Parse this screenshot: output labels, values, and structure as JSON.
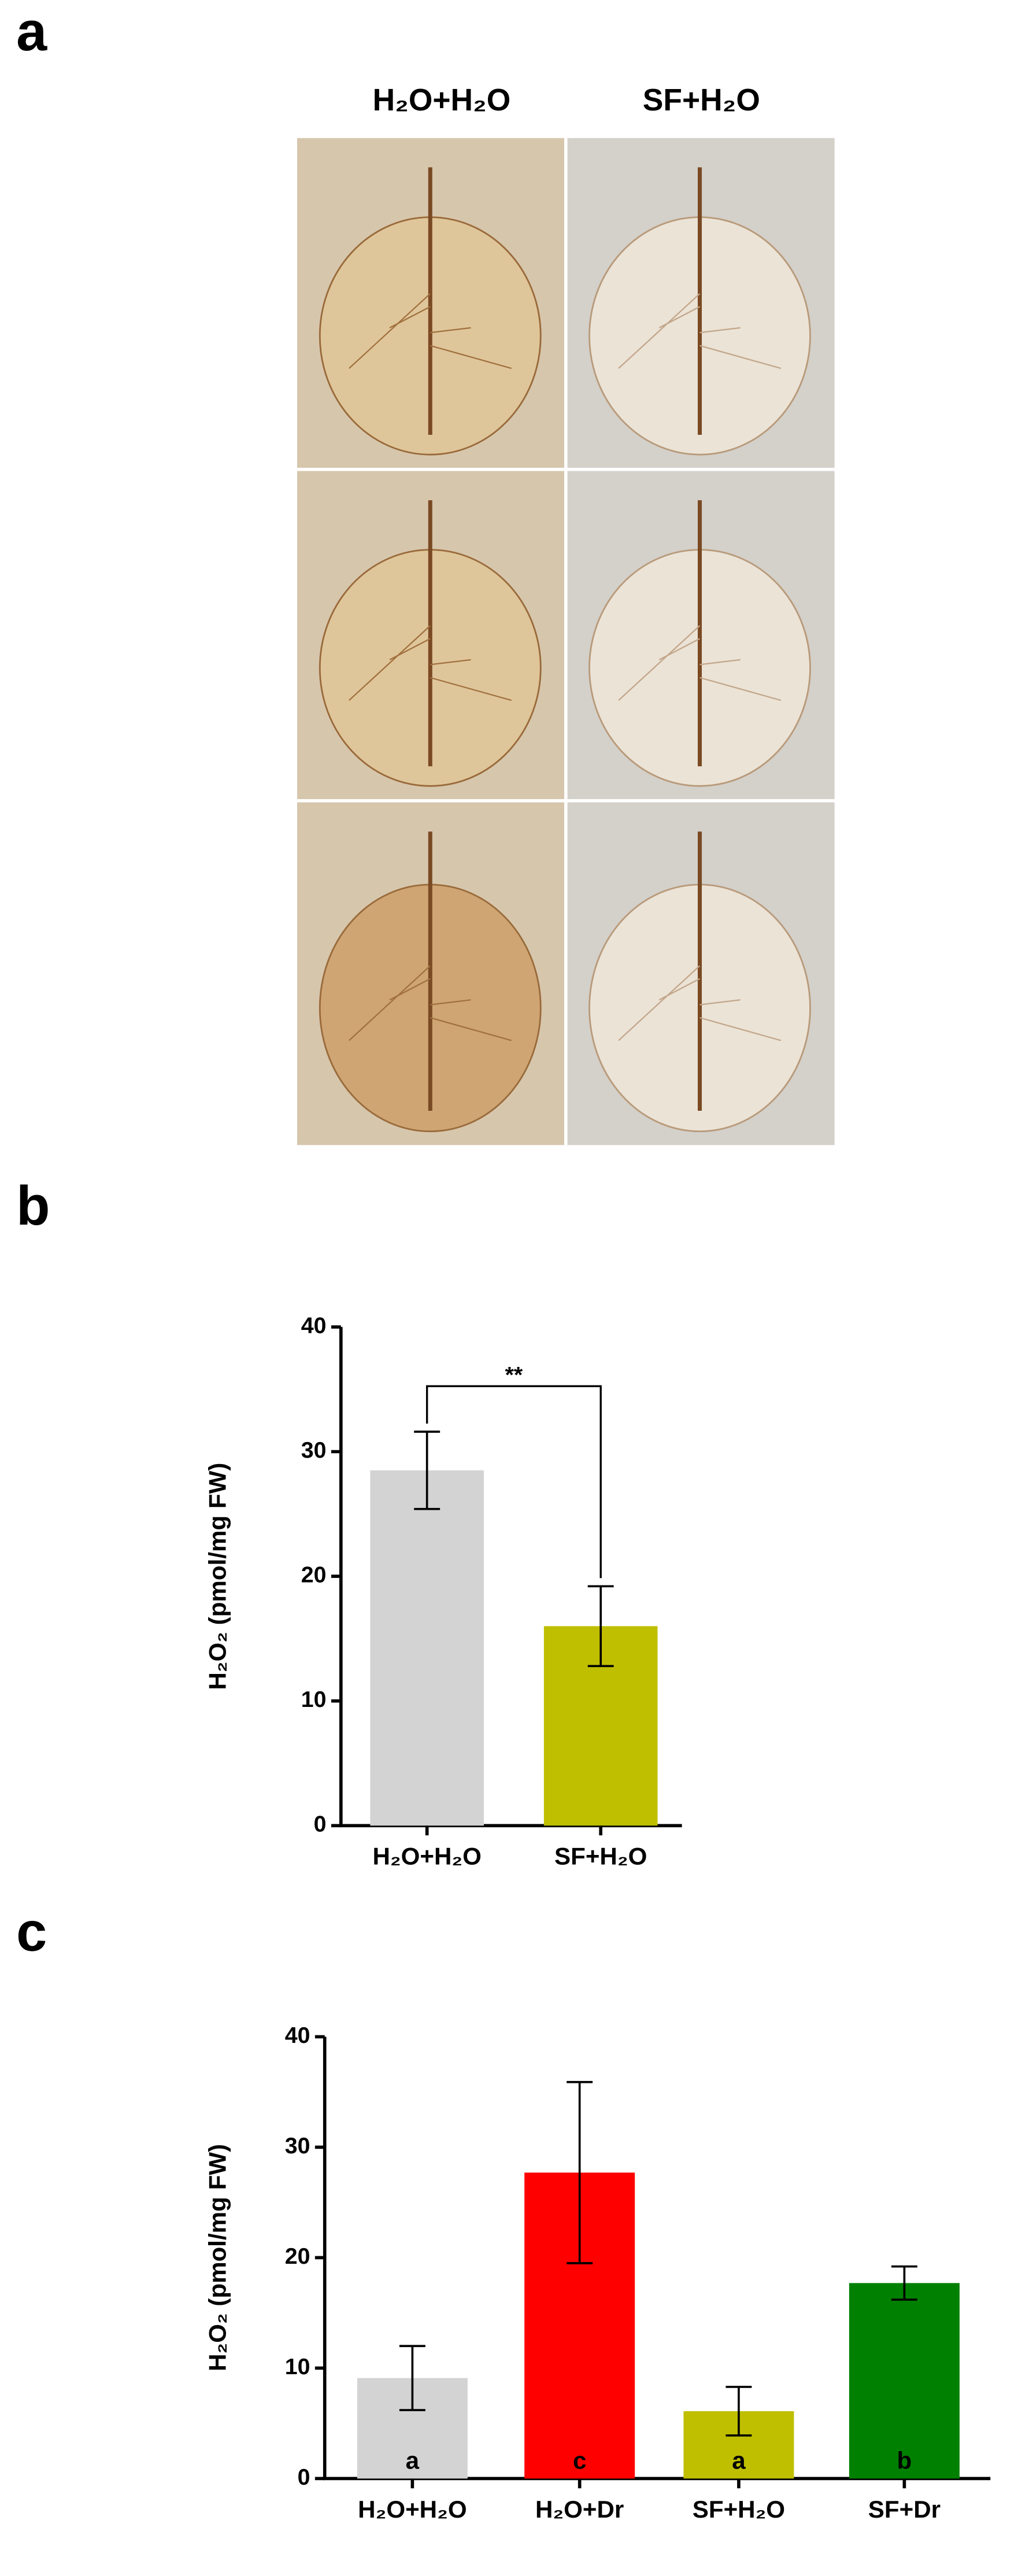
{
  "figure": {
    "panels": [
      "a",
      "b",
      "c"
    ],
    "photo_columns": [
      "H₂O+H₂O",
      "SF+H₂O"
    ]
  },
  "chart_data": [
    {
      "type": "bar",
      "y_label": "H₂O₂ (pmol/mg FW)",
      "categories": [
        "H₂O+H₂O",
        "SF+H₂O"
      ],
      "values": [
        28.5,
        16
      ],
      "errors": [
        3.1,
        3.2
      ],
      "colors": [
        "#d3d3d3",
        "#bfbf00"
      ],
      "annotation": "**",
      "ylim": [
        0,
        40
      ],
      "yticks": [
        0,
        10,
        20,
        30,
        40
      ]
    },
    {
      "type": "bar",
      "y_label": "H₂O₂ (pmol/mg FW)",
      "categories": [
        "H₂O+H₂O",
        "H₂O+Dr",
        "SF+H₂O",
        "SF+Dr"
      ],
      "values": [
        9.1,
        27.7,
        6.1,
        17.7
      ],
      "errors": [
        2.9,
        8.2,
        2.2,
        1.5
      ],
      "colors": [
        "#d3d3d3",
        "#ff0000",
        "#bfbf00",
        "#008000"
      ],
      "group_letters": [
        "a",
        "c",
        "a",
        "b"
      ],
      "ylim": [
        0,
        40
      ],
      "yticks": [
        0,
        10,
        20,
        30,
        40
      ]
    }
  ]
}
